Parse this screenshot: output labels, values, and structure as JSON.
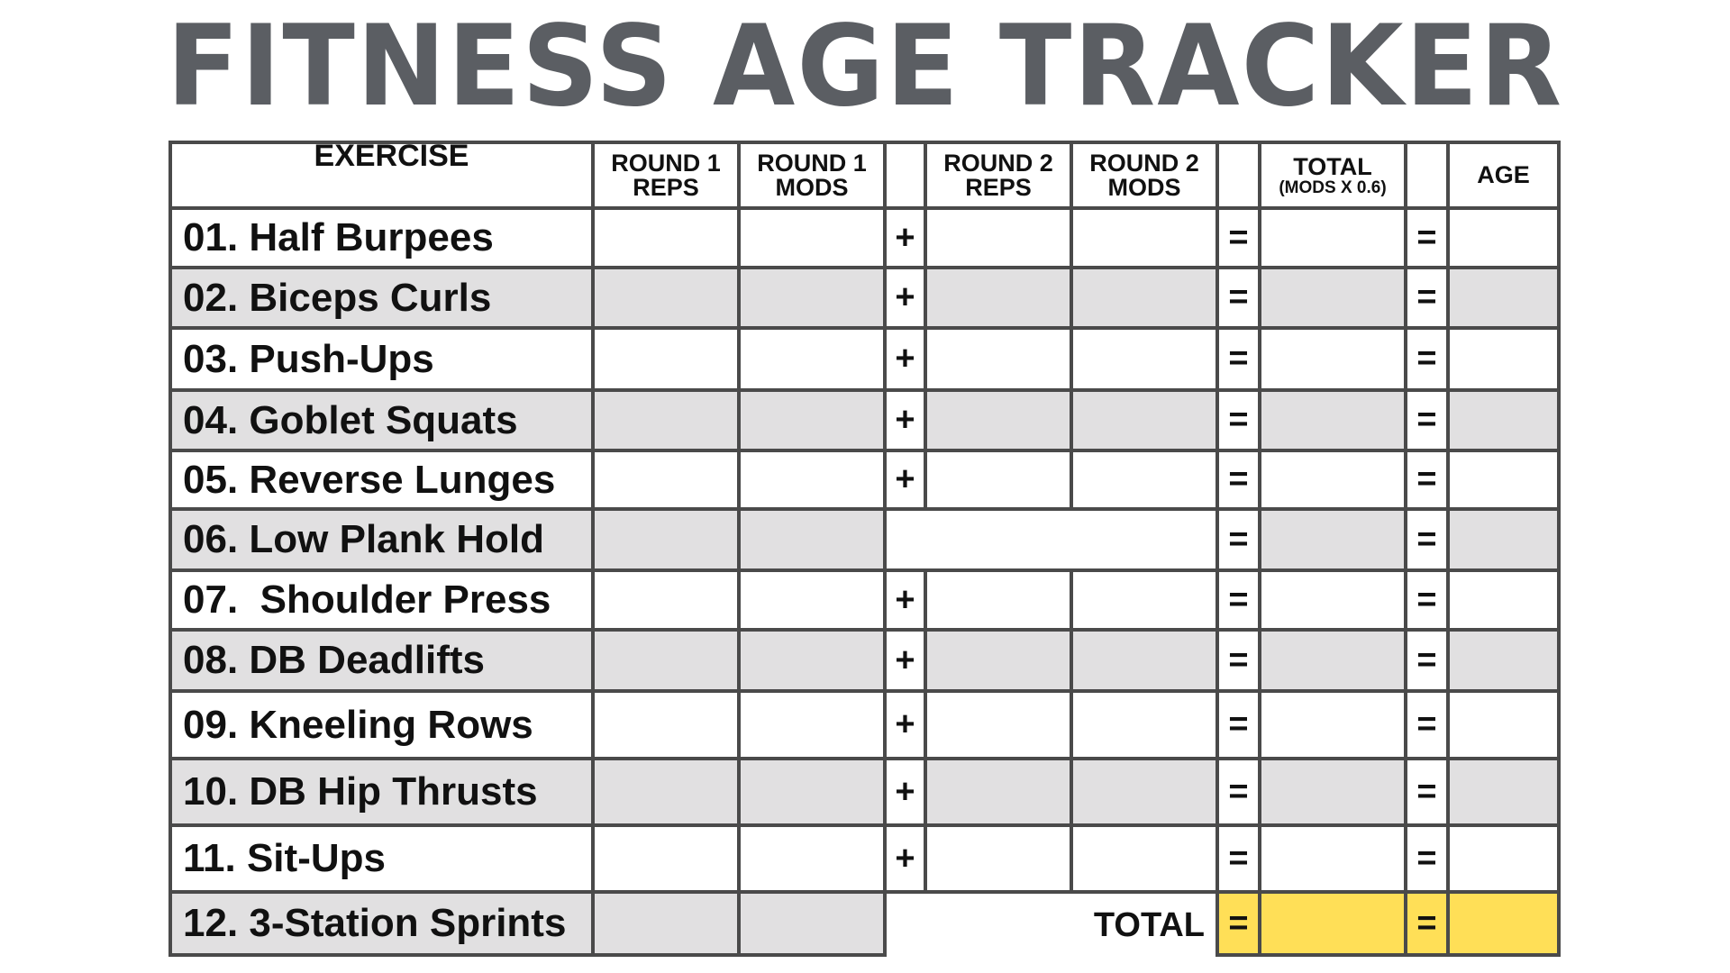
{
  "title": "FITNESS AGE TRACKER",
  "headers": {
    "exercise": "EXERCISE",
    "r1reps": [
      "ROUND 1",
      "REPS"
    ],
    "r1mods": [
      "ROUND 1",
      "MODS"
    ],
    "r2reps": [
      "ROUND 2",
      "REPS"
    ],
    "r2mods": [
      "ROUND 2",
      "MODS"
    ],
    "total": [
      "TOTAL",
      "(MODS X 0.6)"
    ],
    "age": "AGE"
  },
  "symbols": {
    "plus": "+",
    "equals": "="
  },
  "exercises": [
    "01. Half Burpees",
    "02. Biceps Curls",
    "03. Push-Ups",
    "04. Goblet Squats",
    "05. Reverse Lunges",
    "06. Low Plank Hold",
    "07.  Shoulder Press",
    "08. DB Deadlifts",
    "09. Kneeling Rows",
    "10. DB Hip Thrusts",
    "11. Sit-Ups",
    "12. 3-Station Sprints"
  ],
  "total_label": "TOTAL",
  "colors": {
    "border": "#4a4a4a",
    "shaded_row": "#e1e0e1",
    "total_highlight": "#ffdf57",
    "title": "#5b5e63"
  }
}
